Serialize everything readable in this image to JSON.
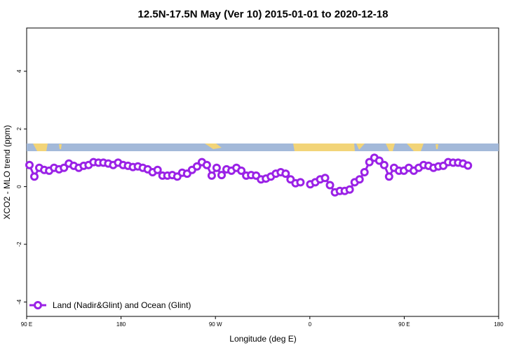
{
  "chart_data": {
    "type": "line",
    "title": "12.5N-17.5N May (Ver 10)   2015-01-01 to 2020-12-18",
    "xlabel": "Longitude (deg E)",
    "ylabel": "XCO2 - MLO trend (ppm)",
    "ylim": [
      -4.5,
      5.5
    ],
    "y_ticks": [
      -4,
      -2,
      0,
      2,
      4
    ],
    "y_tick_labels": [
      "-4",
      "-2",
      "0",
      "2",
      "4"
    ],
    "x_ticks": [
      "90 E",
      "180",
      "90 W",
      "0",
      "90 E",
      "180"
    ],
    "grid": false,
    "legend_position": "bottom-left",
    "colors": {
      "series": "#9a22e6",
      "ocean": "#a3b9d9",
      "land": "#f2d478"
    },
    "series": [
      {
        "name": "Land (Nadir&Glint) and Ocean (Glint)",
        "x": [
          0,
          1,
          2,
          3,
          4,
          5,
          6,
          7,
          8,
          9,
          10,
          11,
          12,
          13,
          14,
          15,
          16,
          17,
          18,
          19,
          20,
          21,
          22,
          23,
          24,
          25,
          26,
          27,
          28,
          29,
          30,
          31,
          32,
          33,
          34,
          35,
          36,
          37,
          38,
          39,
          40,
          41,
          42,
          43,
          44,
          45,
          46,
          47,
          48,
          49,
          50,
          51,
          52,
          53,
          54,
          55,
          56,
          57,
          58,
          59,
          60,
          61,
          62,
          63,
          64,
          65,
          66,
          67,
          68,
          69,
          70,
          71,
          72,
          73,
          74,
          75,
          76,
          77,
          78,
          79,
          80,
          81,
          82,
          83,
          84,
          85,
          86,
          87,
          88,
          89,
          90,
          91,
          92,
          93,
          94,
          95
        ],
        "values": [
          0.75,
          0.35,
          0.65,
          0.58,
          0.55,
          0.65,
          0.6,
          0.65,
          0.8,
          0.72,
          0.65,
          0.72,
          0.75,
          0.85,
          0.83,
          0.83,
          0.8,
          0.75,
          0.83,
          0.75,
          0.72,
          0.68,
          0.7,
          0.65,
          0.6,
          0.5,
          0.58,
          0.38,
          0.38,
          0.4,
          0.35,
          0.48,
          0.45,
          0.58,
          0.7,
          0.85,
          0.75,
          0.38,
          0.65,
          0.4,
          0.6,
          0.55,
          0.65,
          0.55,
          0.38,
          0.4,
          0.38,
          0.25,
          0.28,
          0.35,
          0.45,
          0.5,
          0.45,
          0.25,
          0.12,
          0.15,
          null,
          0.08,
          0.15,
          0.25,
          0.3,
          0.05,
          -0.2,
          -0.15,
          -0.15,
          -0.1,
          0.15,
          0.25,
          0.5,
          0.85,
          1.0,
          0.9,
          0.75,
          0.35,
          0.65,
          0.55,
          0.55,
          0.65,
          0.55,
          0.65,
          0.75,
          0.72,
          0.65,
          0.7,
          0.72,
          0.85,
          0.83,
          0.83,
          0.8,
          0.73,
          null,
          null,
          null,
          null,
          null,
          null
        ]
      }
    ]
  }
}
